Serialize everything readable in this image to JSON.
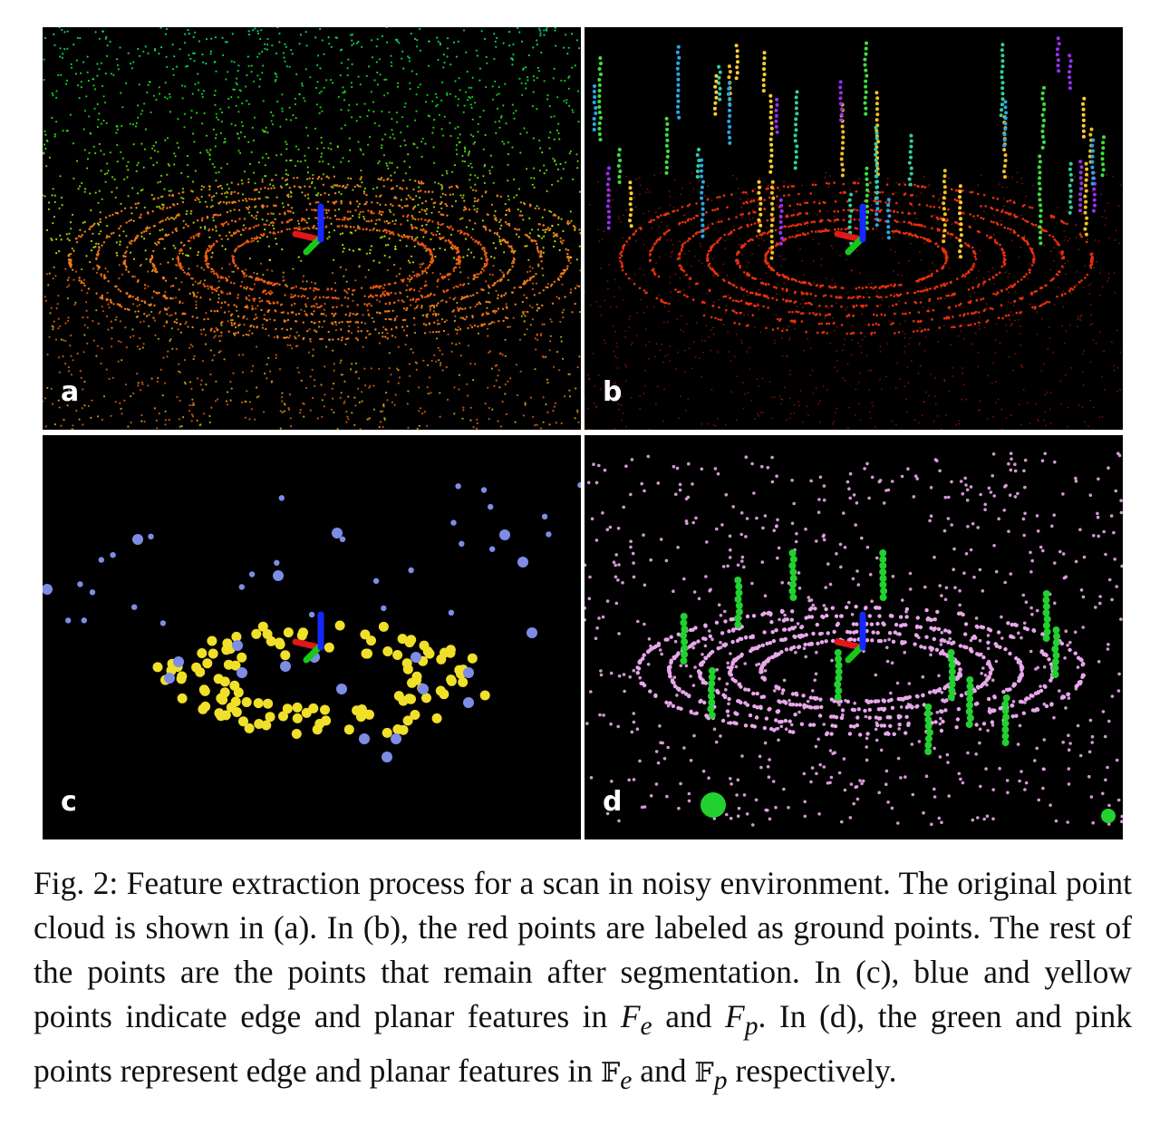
{
  "panels": {
    "a": {
      "label": "a"
    },
    "b": {
      "label": "b"
    },
    "c": {
      "label": "c"
    },
    "d": {
      "label": "d"
    }
  },
  "colors": {
    "ground_red": "#e8300c",
    "edge_blue": "#7d8de6",
    "planar_yellow": "#f1e02a",
    "edge_green": "#22d130",
    "planar_pink": "#e9a7ec",
    "axis_red": "#e01818",
    "axis_green": "#18c818",
    "axis_blue": "#1428ff"
  },
  "caption": {
    "fig_label": "Fig. 2:",
    "part1": " Feature extraction process for a scan in noisy environment. The original point cloud is shown in (a). In (b), the red points are labeled as ground points. The rest of the points are the points that remain after segmentation. In (c), blue and yellow points indicate edge and planar features in ",
    "fe": "F",
    "fe_sub": "e",
    "and1": " and ",
    "fp": "F",
    "fp_sub": "p",
    "part2": ". In (d), the green and pink points represent edge and planar features in ",
    "bbfe": "𝔽",
    "bbfe_sub": "e",
    "and2": " and ",
    "bbfp": "𝔽",
    "bbfp_sub": "p",
    "part3": " respectively."
  }
}
